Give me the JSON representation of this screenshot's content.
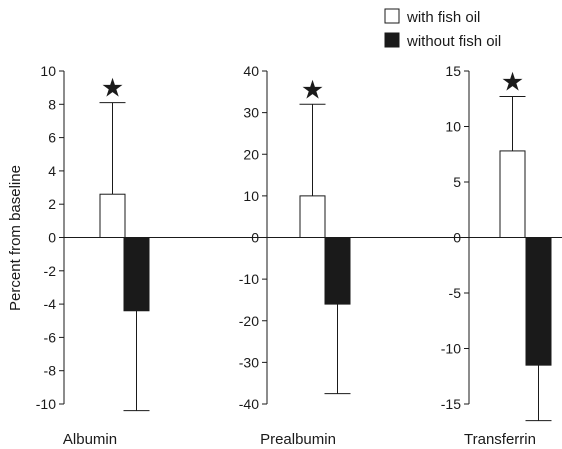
{
  "chart_data": {
    "type": "bar",
    "ylabel": "Percent from baseline",
    "legend": {
      "placement": "top-right",
      "entries": [
        {
          "label": "with fish oil",
          "fill": "#ffffff"
        },
        {
          "label": "without fish oil",
          "fill": "#1a1a1a"
        }
      ]
    },
    "significance_marker": "★",
    "panels": [
      {
        "category": "Albumin",
        "ylim": [
          -10,
          10
        ],
        "ticks": [
          "10",
          "8",
          "6",
          "4",
          "2",
          "0",
          "-2",
          "-4",
          "-6",
          "-8",
          "-10"
        ],
        "tick_values": [
          10,
          8,
          6,
          4,
          2,
          0,
          -2,
          -4,
          -6,
          -8,
          -10
        ],
        "series": [
          {
            "name": "with fish oil",
            "value": 2.6,
            "error": 5.5,
            "error_dir": "up",
            "significant": true
          },
          {
            "name": "without fish oil",
            "value": -4.4,
            "error": 6.0,
            "error_dir": "down",
            "significant": false
          }
        ]
      },
      {
        "category": "Prealbumin",
        "ylim": [
          -40,
          40
        ],
        "ticks": [
          "40",
          "30",
          "20",
          "10",
          "0",
          "-10",
          "-20",
          "-30",
          "-40"
        ],
        "tick_values": [
          40,
          30,
          20,
          10,
          0,
          -10,
          -20,
          -30,
          -40
        ],
        "series": [
          {
            "name": "with fish oil",
            "value": 10,
            "error": 22,
            "error_dir": "up",
            "significant": true
          },
          {
            "name": "without fish oil",
            "value": -16,
            "error": 21.5,
            "error_dir": "down",
            "significant": false
          }
        ]
      },
      {
        "category": "Transferrin",
        "ylim": [
          -15,
          15
        ],
        "ticks": [
          "15",
          "10",
          "5",
          "0",
          "-5",
          "-10",
          "-15"
        ],
        "tick_values": [
          15,
          10,
          5,
          0,
          -5,
          -10,
          -15
        ],
        "series": [
          {
            "name": "with fish oil",
            "value": 7.8,
            "error": 4.9,
            "error_dir": "up",
            "significant": true
          },
          {
            "name": "without fish oil",
            "value": -11.5,
            "error": 5.0,
            "error_dir": "down",
            "significant": false
          }
        ]
      }
    ]
  }
}
